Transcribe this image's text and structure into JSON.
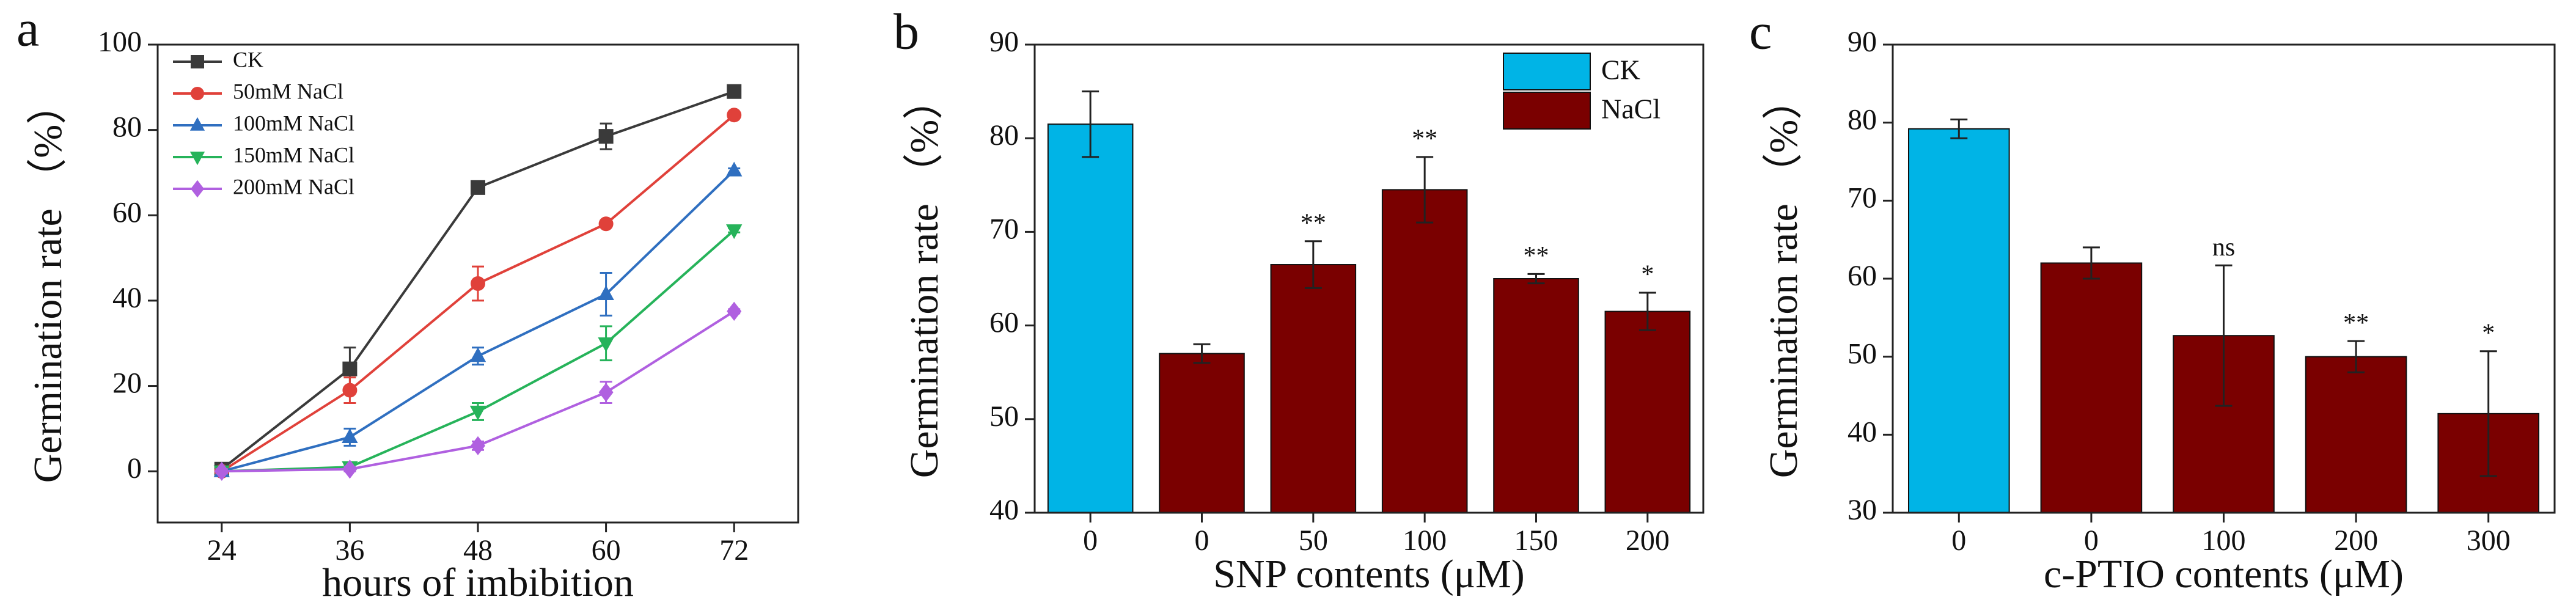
{
  "chart_data": [
    {
      "type": "line",
      "panel": "a",
      "ylabel": "Germination rate （%）",
      "xlabel": "hours of imbibition",
      "x": [
        24,
        36,
        48,
        60,
        72
      ],
      "xlim": [
        18,
        78
      ],
      "xticks": [
        24,
        36,
        48,
        60,
        72
      ],
      "ylim": [
        -12,
        100
      ],
      "yticks": [
        0,
        20,
        40,
        60,
        80,
        100
      ],
      "legend": "upper left",
      "series": [
        {
          "name": "CK",
          "color": "#3a3a3a",
          "marker": "square",
          "values": [
            0.5,
            24,
            66.5,
            78.5,
            89
          ],
          "errors": [
            1,
            5,
            0.5,
            3,
            0.5
          ]
        },
        {
          "name": "50mM NaCl",
          "color": "#e0413a",
          "marker": "circle",
          "values": [
            0,
            19,
            44,
            58,
            83.5
          ],
          "errors": [
            0.5,
            3,
            4,
            0.5,
            0.5
          ]
        },
        {
          "name": "100mM NaCl",
          "color": "#2f6fc0",
          "marker": "triangle-up",
          "values": [
            0,
            8,
            27,
            41.5,
            70.5
          ],
          "errors": [
            0.5,
            2,
            2,
            5,
            0.5
          ]
        },
        {
          "name": "150mM NaCl",
          "color": "#26b35a",
          "marker": "triangle-down",
          "values": [
            0,
            1,
            14,
            30,
            56.5
          ],
          "errors": [
            0.5,
            0.5,
            2,
            4,
            0.5
          ]
        },
        {
          "name": "200mM NaCl",
          "color": "#b060e0",
          "marker": "diamond",
          "values": [
            0,
            0.5,
            6,
            18.5,
            37.5
          ],
          "errors": [
            0.5,
            0.5,
            1,
            2.5,
            0.5
          ]
        }
      ]
    },
    {
      "type": "bar",
      "panel": "b",
      "ylabel": "Germination rate （%）",
      "xlabel": "SNP contents (μM)",
      "categories": [
        "0",
        "0",
        "50",
        "100",
        "150",
        "200"
      ],
      "ylim": [
        40,
        90
      ],
      "yticks": [
        40,
        50,
        60,
        70,
        80,
        90
      ],
      "legend": "upper right",
      "series": [
        {
          "name": "CK",
          "color": "#00b4e6",
          "values": [
            81.5,
            null,
            null,
            null,
            null,
            null
          ],
          "errors": [
            3.5,
            null,
            null,
            null,
            null,
            null
          ]
        },
        {
          "name": "NaCl",
          "color": "#7a0000",
          "values": [
            null,
            57,
            66.5,
            74.5,
            65,
            61.5
          ],
          "errors": [
            null,
            1,
            2.5,
            3.5,
            0.5,
            2
          ]
        }
      ],
      "significance": [
        null,
        null,
        "**",
        "**",
        "**",
        "*"
      ]
    },
    {
      "type": "bar",
      "panel": "c",
      "ylabel": "Germination rate （%）",
      "xlabel": "c-PTIO contents (μM)",
      "categories": [
        "0",
        "0",
        "100",
        "200",
        "300"
      ],
      "ylim": [
        30,
        90
      ],
      "yticks": [
        30,
        40,
        50,
        60,
        70,
        80,
        90
      ],
      "series": [
        {
          "color": "#00b4e6",
          "values": [
            79.2,
            null,
            null,
            null,
            null
          ],
          "errors": [
            1.2,
            null,
            null,
            null,
            null
          ]
        },
        {
          "color": "#7a0000",
          "values": [
            null,
            62,
            52.7,
            50,
            42.7
          ],
          "errors": [
            null,
            2,
            9,
            2,
            8
          ]
        }
      ],
      "significance": [
        null,
        null,
        "ns",
        "**",
        "*"
      ]
    }
  ]
}
